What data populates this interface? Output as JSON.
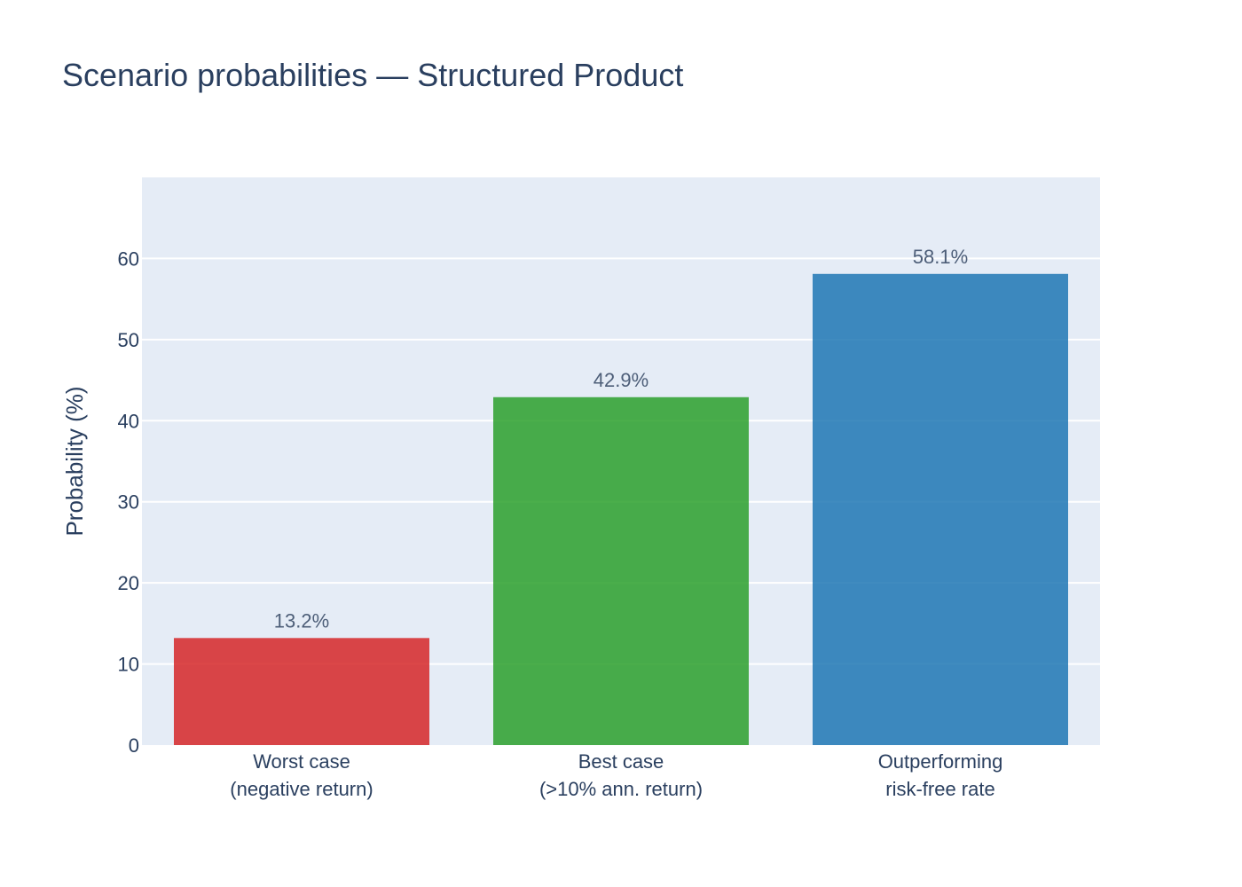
{
  "chart_data": {
    "type": "bar",
    "title": "Scenario probabilities — Structured Product",
    "xlabel": "",
    "ylabel": "Probability (%)",
    "ylim": [
      0,
      70
    ],
    "yticks": [
      0,
      10,
      20,
      30,
      40,
      50,
      60
    ],
    "grid": true,
    "categories": [
      [
        "Worst case",
        "(negative return)"
      ],
      [
        "Best case",
        "(>10% ann. return)"
      ],
      [
        "Outperforming",
        "risk-free rate"
      ]
    ],
    "values": [
      13.2,
      42.9,
      58.1
    ],
    "data_labels": [
      "13.2%",
      "42.9%",
      "58.1%"
    ],
    "colors": [
      "#d62728",
      "#2ca02c",
      "#1f77b4"
    ],
    "bar_opacity": 0.85,
    "plot_background": "#e5ecf6"
  }
}
